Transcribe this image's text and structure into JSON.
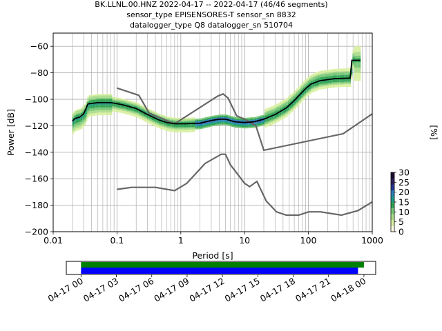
{
  "title_lines": [
    "BK.LLNL.00.HNZ   2022-04-17 -- 2022-04-17  (46/46 segments)",
    "sensor_type EPISENSORES-T sensor_sn 8832",
    "datalogger_type Q8 datalogger_sn 510704"
  ],
  "colors": {
    "nm_model": "#666666",
    "mode": "#000000",
    "bar_full": "#008000",
    "bar_segments": "#0000ff",
    "grid": "#b0b0b0"
  },
  "colormap": [
    "#ffffe5",
    "#d9f0a3",
    "#addd8e",
    "#78c679",
    "#31a354",
    "#1d9a87",
    "#2c7fb8",
    "#253494",
    "#2b1f5c",
    "#1a0b2e"
  ],
  "chart_data": [
    {
      "type": "heatmap",
      "subtype": "probabilistic power spectral density (PPSD)",
      "xlabel": "Period [s]",
      "ylabel": "Power [dB]",
      "xscale": "log",
      "xlim": [
        0.01,
        1000
      ],
      "ylim": [
        -200,
        -50
      ],
      "x_ticks": [
        0.01,
        0.1,
        1,
        10,
        100,
        1000
      ],
      "x_tick_labels": [
        "0.01",
        "0.1",
        "1",
        "10",
        "100",
        "1000"
      ],
      "y_ticks": [
        -200,
        -180,
        -160,
        -140,
        -120,
        -100,
        -80,
        -60
      ],
      "y_tick_labels": [
        "−200",
        "−180",
        "−160",
        "−140",
        "−120",
        "−100",
        "−80",
        "−60"
      ],
      "grid": true,
      "colorbar": {
        "label": "[%]",
        "range": [
          0,
          30
        ],
        "ticks": [
          0,
          5,
          10,
          15,
          20,
          25,
          30
        ],
        "tick_labels": [
          "0",
          "5",
          "10",
          "15",
          "20",
          "25",
          "30"
        ]
      },
      "mode": {
        "period": [
          0.02,
          0.022,
          0.026,
          0.03,
          0.035,
          0.05,
          0.08,
          0.12,
          0.2,
          0.3,
          0.45,
          0.6,
          0.8,
          1.2,
          2,
          3,
          4,
          5,
          7,
          10,
          14,
          20,
          30,
          45,
          60,
          75,
          90,
          110,
          150,
          250,
          450,
          480,
          650
        ],
        "power": [
          -116.5,
          -114.5,
          -113.5,
          -111,
          -103.5,
          -102.5,
          -102.5,
          -104,
          -107,
          -111.5,
          -115.5,
          -117.5,
          -118.5,
          -118.5,
          -118,
          -116,
          -115,
          -115,
          -117,
          -117.5,
          -117,
          -115,
          -111.5,
          -106.5,
          -101,
          -96,
          -92,
          -88.5,
          -86,
          -84.5,
          -84,
          -70.5,
          -70.5
        ]
      },
      "noise_model_high": {
        "period": [
          0.1,
          0.22,
          0.32,
          0.8,
          3.8,
          4.6,
          5.5,
          7.5,
          10,
          15,
          20,
          350,
          1000
        ],
        "power": [
          -91.5,
          -97,
          -110.5,
          -118.5,
          -97.5,
          -96,
          -99,
          -112.5,
          -115,
          -120,
          -138.5,
          -126,
          -111
        ]
      },
      "noise_model_low": {
        "period": [
          0.1,
          0.17,
          0.4,
          0.8,
          1.24,
          2.4,
          4.3,
          5,
          6,
          10,
          12,
          15.6,
          21.9,
          31.6,
          45,
          70,
          101,
          154,
          328,
          600,
          1000
        ],
        "power": [
          -168,
          -166.5,
          -166.5,
          -169,
          -163.5,
          -148.5,
          -141.5,
          -141.5,
          -149.5,
          -163.5,
          -166,
          -162,
          -177,
          -185,
          -187.5,
          -187.5,
          -185,
          -185,
          -187.5,
          -184,
          -177.5
        ]
      }
    },
    {
      "type": "timeline",
      "description": "data coverage bars",
      "x_ticks": [
        "04-17 00",
        "04-17 03",
        "04-17 06",
        "04-17 09",
        "04-17 12",
        "04-17 15",
        "04-17 18",
        "04-17 21",
        "04-18 00"
      ],
      "x_tick_hours": [
        0,
        3,
        6,
        9,
        12,
        15,
        18,
        21,
        24
      ],
      "xlim_hours": [
        -1.25,
        25
      ],
      "series": [
        {
          "start_hours": 0,
          "end_hours": 24.0
        },
        {
          "start_hours": 0,
          "end_hours": 23.5
        }
      ]
    }
  ]
}
